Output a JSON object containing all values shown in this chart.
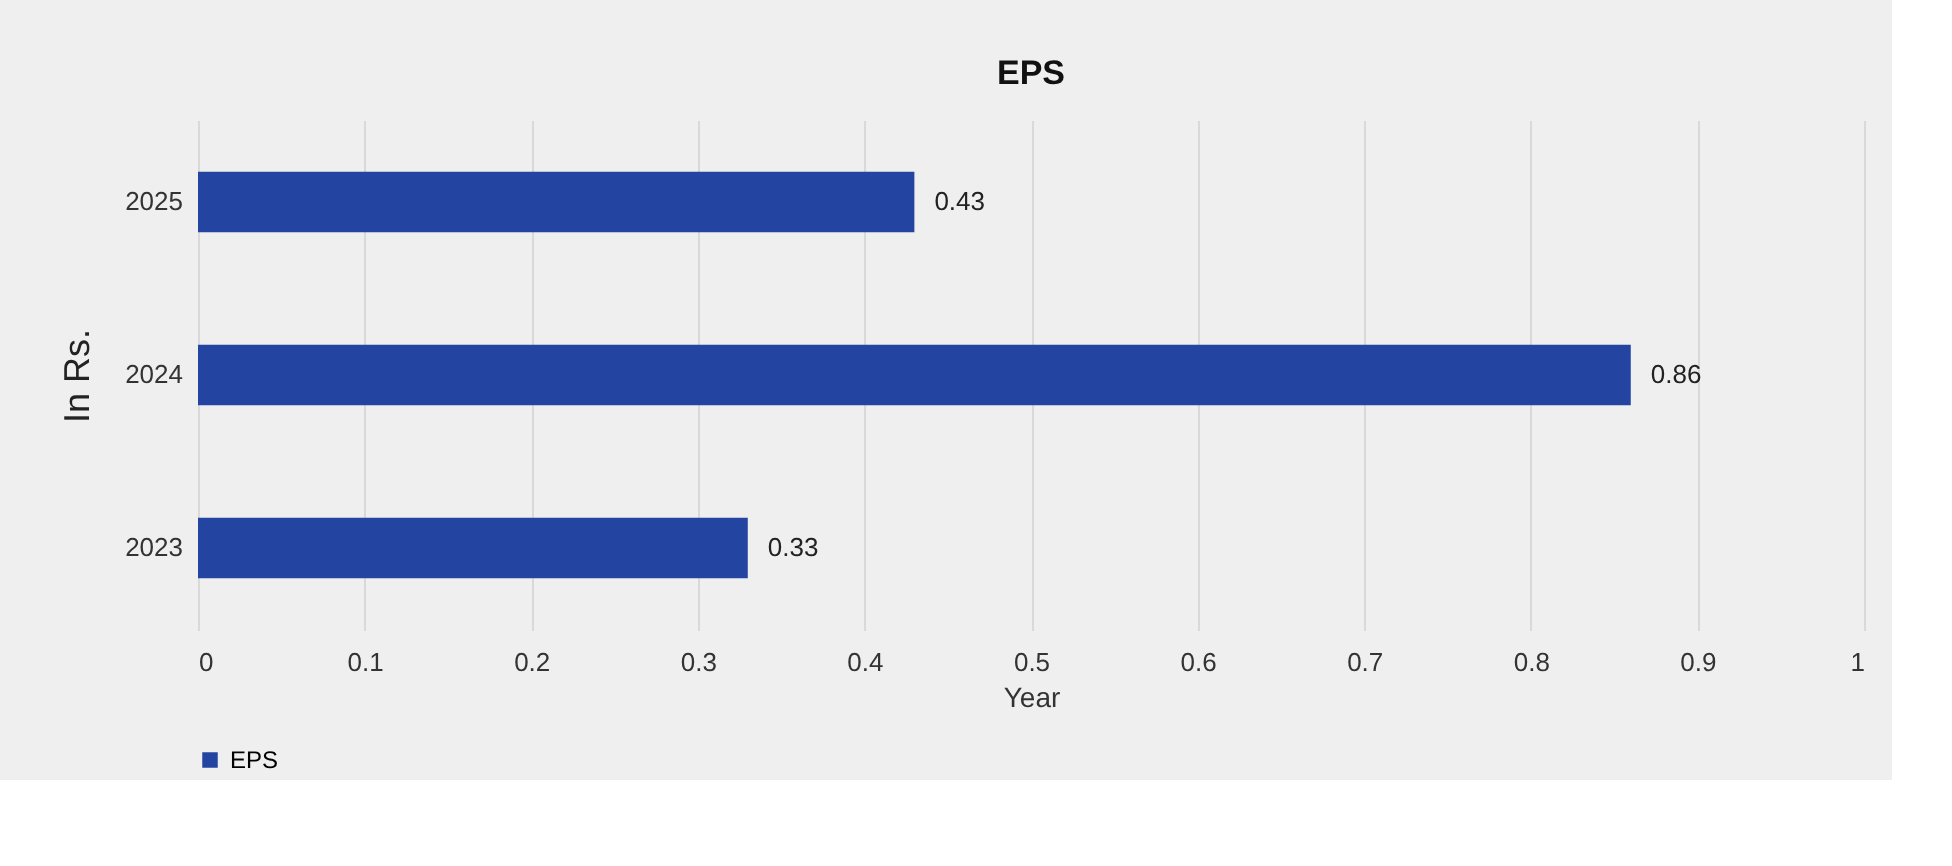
{
  "chart_data": {
    "type": "bar",
    "orientation": "horizontal",
    "title": "EPS",
    "xlabel": "Year",
    "ylabel": "In Rs.",
    "categories": [
      "2025",
      "2024",
      "2023"
    ],
    "series": [
      {
        "name": "EPS",
        "color": "#2344a0",
        "values": [
          0.43,
          0.86,
          0.33
        ]
      }
    ],
    "xlim": [
      0,
      1
    ],
    "xticks": [
      0,
      0.1,
      0.2,
      0.3,
      0.4,
      0.5,
      0.6,
      0.7,
      0.8,
      0.9,
      1
    ],
    "grid": "x",
    "legend": "bottom",
    "data_labels": true
  }
}
